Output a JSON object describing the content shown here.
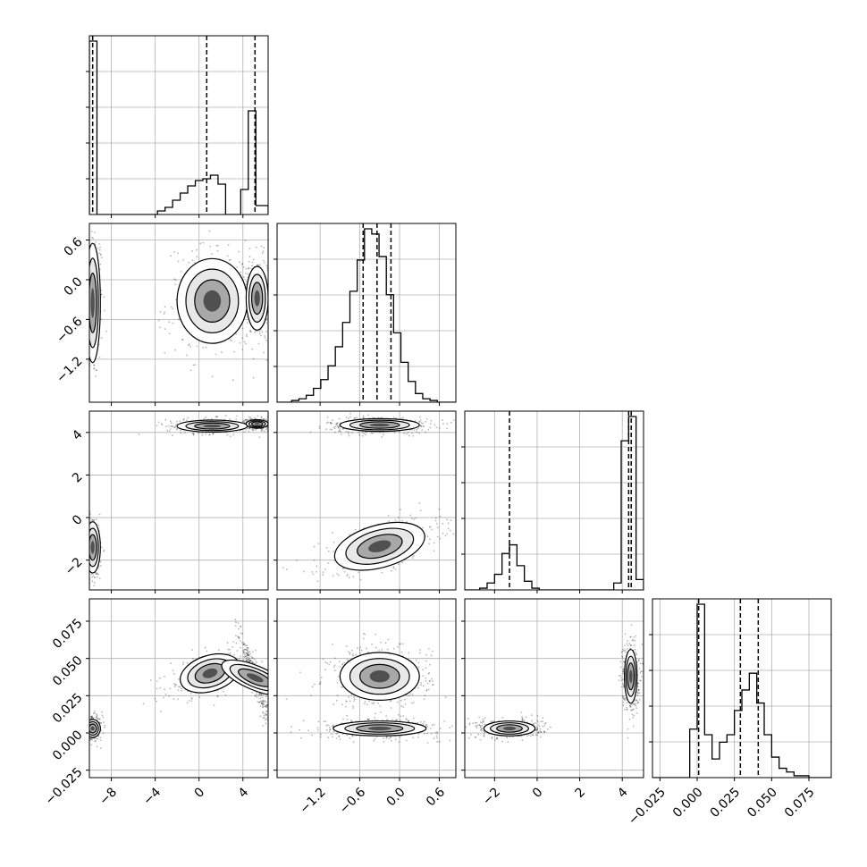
{
  "chart_data": {
    "type": "corner",
    "title": "",
    "grid": true,
    "colors": {
      "line": "#000000",
      "grid": "#b0b0b0",
      "density": "#000000"
    },
    "parameters": [
      {
        "range": [
          -10,
          6.3
        ],
        "ticks": [
          -8,
          -4,
          0,
          4
        ],
        "tick_labels": [
          "−8",
          "−4",
          "0",
          "4"
        ],
        "quantile_lines": [
          -9.7,
          0.7,
          5.1
        ],
        "histogram": {
          "bin_edges": [
            -10,
            -9.31,
            -8.62,
            -7.93,
            -7.24,
            -6.55,
            -5.86,
            -5.17,
            -4.48,
            -3.79,
            -3.1,
            -2.41,
            -1.72,
            -1.03,
            -0.34,
            0.35,
            1.04,
            1.73,
            2.42,
            3.11,
            3.8,
            4.49,
            5.18,
            5.87,
            6.3
          ],
          "counts": [
            0.97,
            0.0,
            0.0,
            0.0,
            0.0,
            0.0,
            0.0,
            0.0,
            0.0,
            0.02,
            0.04,
            0.08,
            0.12,
            0.16,
            0.19,
            0.2,
            0.22,
            0.17,
            0.0,
            0.0,
            0.14,
            0.58,
            0.05,
            0.05
          ]
        }
      },
      {
        "range": [
          -1.85,
          0.85
        ],
        "ticks": [
          -1.2,
          -0.6,
          0.0,
          0.6
        ],
        "tick_labels": [
          "−1.2",
          "−0.6",
          "0.0",
          "0.6"
        ],
        "quantile_lines": [
          -0.55,
          -0.34,
          -0.13
        ],
        "histogram": {
          "bin_edges": [
            -1.85,
            -1.74,
            -1.63,
            -1.52,
            -1.41,
            -1.3,
            -1.19,
            -1.08,
            -0.97,
            -0.86,
            -0.75,
            -0.64,
            -0.53,
            -0.42,
            -0.31,
            -0.2,
            -0.09,
            0.02,
            0.13,
            0.24,
            0.35,
            0.46,
            0.57,
            0.68,
            0.85
          ],
          "counts": [
            0.0,
            0.0,
            0.01,
            0.02,
            0.04,
            0.08,
            0.13,
            0.21,
            0.32,
            0.46,
            0.64,
            0.82,
            1.0,
            0.97,
            0.84,
            0.62,
            0.4,
            0.23,
            0.12,
            0.05,
            0.02,
            0.01,
            0.0,
            0.0
          ]
        }
      },
      {
        "range": [
          -3.4,
          5.0
        ],
        "ticks": [
          -2,
          0,
          2,
          4
        ],
        "tick_labels": [
          "−2",
          "0",
          "2",
          "4"
        ],
        "quantile_lines": [
          -1.3,
          4.3,
          4.42
        ],
        "histogram": {
          "bin_edges": [
            -3.4,
            -3.05,
            -2.7,
            -2.35,
            -2.0,
            -1.65,
            -1.3,
            -0.95,
            -0.6,
            -0.25,
            0.1,
            0.45,
            0.8,
            1.15,
            1.5,
            1.85,
            2.2,
            2.55,
            2.9,
            3.25,
            3.6,
            3.95,
            4.3,
            4.65,
            5.0
          ],
          "counts": [
            0.0,
            0.0,
            0.01,
            0.04,
            0.09,
            0.21,
            0.26,
            0.14,
            0.05,
            0.01,
            0.0,
            0.0,
            0.0,
            0.0,
            0.0,
            0.0,
            0.0,
            0.0,
            0.0,
            0.0,
            0.04,
            0.86,
            1.0,
            0.06
          ]
        }
      },
      {
        "range": [
          -0.03,
          0.09
        ],
        "ticks": [
          -0.025,
          0.0,
          0.025,
          0.05,
          0.075
        ],
        "tick_labels": [
          "−0.025",
          "0.000",
          "0.025",
          "0.050",
          "0.075"
        ],
        "quantile_lines": [
          0.001,
          0.029,
          0.041
        ],
        "histogram": {
          "bin_edges": [
            -0.03,
            -0.025,
            -0.02,
            -0.015,
            -0.01,
            -0.005,
            0.0,
            0.005,
            0.01,
            0.015,
            0.02,
            0.025,
            0.03,
            0.035,
            0.04,
            0.045,
            0.05,
            0.055,
            0.06,
            0.065,
            0.07,
            0.075,
            0.08,
            0.085,
            0.09
          ],
          "counts": [
            0.0,
            0.0,
            0.0,
            0.0,
            0.0,
            0.26,
            0.93,
            0.23,
            0.1,
            0.19,
            0.23,
            0.36,
            0.47,
            0.56,
            0.4,
            0.23,
            0.11,
            0.05,
            0.03,
            0.01,
            0.01,
            0.0,
            0.0,
            0.0
          ]
        }
      }
    ],
    "joint": {
      "1_0": [
        {
          "x": -9.7,
          "y": -0.35,
          "sx": 0.35,
          "sy": 0.45,
          "w": 0.33
        },
        {
          "x": 1.2,
          "y": -0.32,
          "sx": 1.6,
          "sy": 0.32,
          "w": 0.34
        },
        {
          "x": 5.3,
          "y": -0.28,
          "sx": 0.5,
          "sy": 0.24,
          "w": 0.33
        }
      ],
      "2_0": [
        {
          "x": -9.7,
          "y": -1.4,
          "sx": 0.35,
          "sy": 0.6,
          "w": 0.33
        },
        {
          "x": 1.2,
          "y": 4.3,
          "sx": 1.6,
          "sy": 0.14,
          "w": 0.34
        },
        {
          "x": 5.3,
          "y": 4.4,
          "sx": 0.5,
          "sy": 0.1,
          "w": 0.33
        }
      ],
      "2_1": [
        {
          "x": -0.3,
          "y": 4.35,
          "sx": 0.3,
          "sy": 0.15,
          "w": 0.5
        },
        {
          "x": -0.3,
          "y": -1.35,
          "sx": 0.35,
          "sy": 0.5,
          "w": 0.5,
          "r": 0.6
        }
      ],
      "3_0": [
        {
          "x": -9.7,
          "y": 0.003,
          "sx": 0.35,
          "sy": 0.003,
          "w": 0.33
        },
        {
          "x": 1.0,
          "y": 0.04,
          "sx": 1.4,
          "sy": 0.006,
          "w": 0.34,
          "r": 0.55
        },
        {
          "x": 5.1,
          "y": 0.037,
          "sx": 0.55,
          "sy": 0.012,
          "w": 0.33,
          "r": -0.95
        }
      ],
      "3_1": [
        {
          "x": -0.3,
          "y": 0.038,
          "sx": 0.3,
          "sy": 0.008,
          "w": 0.5
        },
        {
          "x": -0.3,
          "y": 0.003,
          "sx": 0.35,
          "sy": 0.0025,
          "w": 0.5
        }
      ],
      "3_2": [
        {
          "x": -1.3,
          "y": 0.003,
          "sx": 0.6,
          "sy": 0.0025,
          "w": 0.5
        },
        {
          "x": 4.4,
          "y": 0.038,
          "sx": 0.15,
          "sy": 0.009,
          "w": 0.5
        }
      ]
    }
  }
}
